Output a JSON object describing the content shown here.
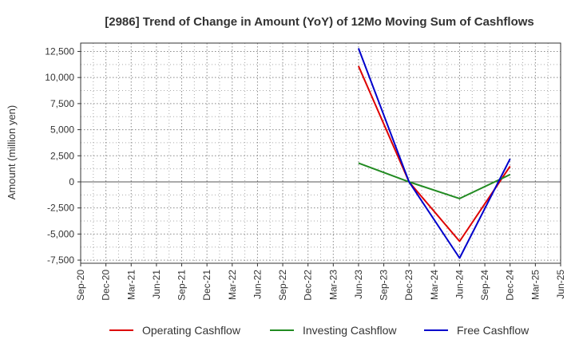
{
  "chart_data": {
    "type": "line",
    "title": "[2986]  Trend of Change in Amount (YoY) of 12Mo Moving Sum of Cashflows",
    "xlabel": "",
    "ylabel": "Amount (million yen)",
    "categories": [
      "Sep-20",
      "Dec-20",
      "Mar-21",
      "Jun-21",
      "Sep-21",
      "Dec-21",
      "Mar-22",
      "Jun-22",
      "Sep-22",
      "Dec-22",
      "Mar-23",
      "Jun-23",
      "Sep-23",
      "Dec-23",
      "Mar-24",
      "Jun-24",
      "Sep-24",
      "Dec-24",
      "Mar-25",
      "Jun-25"
    ],
    "ylim": [
      -7800,
      13300
    ],
    "yticks": [
      -7500,
      -5000,
      -2500,
      0,
      2500,
      5000,
      7500,
      10000,
      12500
    ],
    "ytick_labels": [
      "-7,500",
      "-5,000",
      "-2,500",
      "0",
      "2,500",
      "5,000",
      "7,500",
      "10,000",
      "12,500"
    ],
    "grid": true,
    "legend_position": "bottom",
    "series": [
      {
        "name": "Operating Cashflow",
        "color": "#dd0000",
        "values": [
          null,
          null,
          null,
          null,
          null,
          null,
          null,
          null,
          null,
          null,
          null,
          11100,
          null,
          0,
          null,
          -5700,
          null,
          1500,
          null,
          null
        ]
      },
      {
        "name": "Investing Cashflow",
        "color": "#228b22",
        "values": [
          null,
          null,
          null,
          null,
          null,
          null,
          null,
          null,
          null,
          null,
          null,
          1800,
          null,
          0,
          null,
          -1600,
          null,
          700,
          null,
          null
        ]
      },
      {
        "name": "Free Cashflow",
        "color": "#0000cc",
        "values": [
          null,
          null,
          null,
          null,
          null,
          null,
          null,
          null,
          null,
          null,
          null,
          12800,
          null,
          0,
          null,
          -7300,
          null,
          2200,
          null,
          null
        ]
      }
    ]
  }
}
